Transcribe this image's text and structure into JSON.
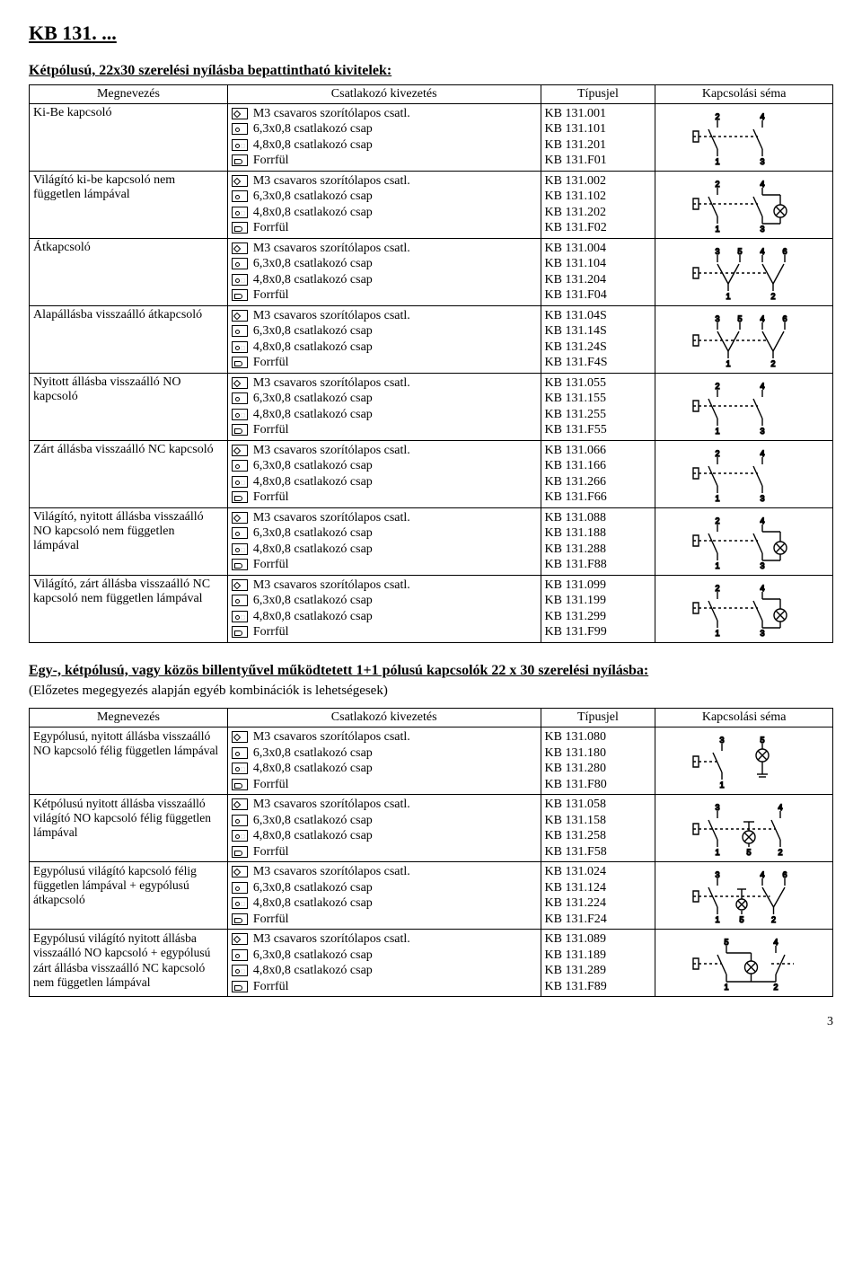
{
  "page_title": "KB 131. ...",
  "section1_title": "Kétpólusú, 22x30 szerelési nyílásba bepattintható kivitelek:",
  "headers": {
    "name": "Megnevezés",
    "conn": "Csatlakozó kivezetés",
    "type": "Típusjel",
    "schema": "Kapcsolási séma"
  },
  "conn_labels": {
    "screw": "M3 csavaros szorítólapos csatl.",
    "c63": "6,3x0,8 csatlakozó csap",
    "c48": "4,8x0,8 csatlakozó csap",
    "flag": "Forrfül"
  },
  "table1": [
    {
      "name": "Ki-Be kapcsoló",
      "base": [
        "KB 131.001",
        "KB 131.101",
        "KB 131.201",
        "KB 131.F01"
      ],
      "schema": "sw2",
      "nums": [
        "2",
        "4",
        "1",
        "3"
      ]
    },
    {
      "name": "Világító ki-be kapcsoló nem független lámpával",
      "base": [
        "KB 131.002",
        "KB 131.102",
        "KB 131.202",
        "KB 131.F02"
      ],
      "schema": "sw2lamp",
      "nums": [
        "2",
        "4",
        "1",
        "3"
      ]
    },
    {
      "name": "Átkapcsoló",
      "base": [
        "KB 131.004",
        "KB 131.104",
        "KB 131.204",
        "KB 131.F04"
      ],
      "schema": "change",
      "nums": [
        "3",
        "5",
        "4",
        "6",
        "1",
        "2"
      ]
    },
    {
      "name": "Alapállásba  visszaálló átkapcsoló",
      "base": [
        "KB 131.04S",
        "KB 131.14S",
        "KB 131.24S",
        "KB 131.F4S"
      ],
      "schema": "change",
      "nums": [
        "3",
        "5",
        "4",
        "6",
        "1",
        "2"
      ]
    },
    {
      "name": "Nyitott állásba visszaálló NO kapcsoló",
      "base": [
        "KB 131.055",
        "KB 131.155",
        "KB 131.255",
        "KB 131.F55"
      ],
      "schema": "sw2",
      "nums": [
        "2",
        "4",
        "1",
        "3"
      ]
    },
    {
      "name": "Zárt állásba visszaálló NC kapcsoló",
      "base": [
        "KB 131.066",
        "KB 131.166",
        "KB 131.266",
        "KB 131.F66"
      ],
      "schema": "sw2",
      "nums": [
        "2",
        "4",
        "1",
        "3"
      ]
    },
    {
      "name": "Világító, nyitott állásba visszaálló NO kapcsoló nem független lámpával",
      "base": [
        "KB 131.088",
        "KB 131.188",
        "KB 131.288",
        "KB 131.F88"
      ],
      "schema": "sw2lamp",
      "nums": [
        "2",
        "4",
        "1",
        "3"
      ]
    },
    {
      "name": "Világító, zárt állásba visszaálló NC kapcsoló nem független lámpával",
      "base": [
        "KB 131.099",
        "KB 131.199",
        "KB 131.299",
        "KB 131.F99"
      ],
      "schema": "sw2lamp",
      "nums": [
        "2",
        "4",
        "1",
        "3"
      ]
    }
  ],
  "section2_title": "Egy-, kétpólusú, vagy közös billentyűvel működtetett 1+1 pólusú kapcsolók 22 x 30 szerelési nyílásba:",
  "section2_note": "(Előzetes megegyezés alapján egyéb kombinációk is lehetségesek)",
  "table2": [
    {
      "name": "Egypólusú, nyitott állásba visszaálló NO kapcsoló félig független lámpával",
      "base": [
        "KB 131.080",
        "KB 131.180",
        "KB 131.280",
        "KB 131.F80"
      ],
      "schema": "t2a",
      "nums": [
        "3",
        "5",
        "1"
      ]
    },
    {
      "name": "Kétpólusú nyitott állásba visszaálló világító NO kapcsoló félig független lámpával",
      "base": [
        "KB 131.058",
        "KB 131.158",
        "KB 131.258",
        "KB 131.F58"
      ],
      "schema": "t2b",
      "nums": [
        "3",
        "4",
        "1",
        "5",
        "2"
      ]
    },
    {
      "name": "Egypólusú világító kapcsoló félig független lámpával + egypólusú átkapcsoló",
      "base": [
        "KB 131.024",
        "KB 131.124",
        "KB 131.224",
        "KB 131.F24"
      ],
      "schema": "t2c",
      "nums": [
        "3",
        "4",
        "6",
        "1",
        "5",
        "2"
      ]
    },
    {
      "name": "Egypólusú világító nyitott állásba visszaálló NO kapcsoló + egypólusú zárt állásba visszaálló NC kapcsoló nem független lámpával",
      "small": true,
      "base": [
        "KB 131.089",
        "KB 131.189",
        "KB 131.289",
        "KB 131.F89"
      ],
      "schema": "t2d",
      "nums": [
        "5",
        "4",
        "1",
        "2"
      ]
    }
  ],
  "schema_style": {
    "stroke": "#000",
    "stroke_width": 1.4,
    "font_size": 9,
    "width": 150,
    "height": 62
  },
  "page_number": "3"
}
